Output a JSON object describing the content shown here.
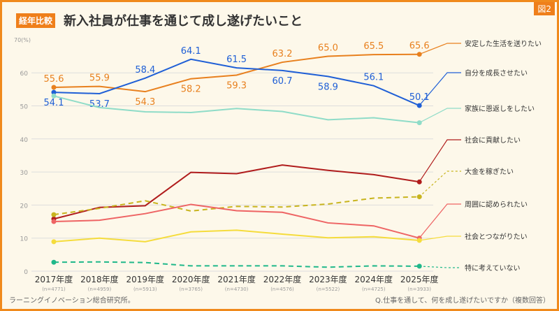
{
  "header": {
    "tag": "経年比較",
    "title": "新入社員が仕事を通じて成し遂げたいこと",
    "figure_label": "図2"
  },
  "footer": {
    "source": "ラーニングイノベーション総合研究所。",
    "question": "Q.仕事を通して、何を成し遂げたいですか（複数回答）"
  },
  "chart_data": {
    "type": "line",
    "ylabel": "70(%)",
    "ylim": [
      0,
      70
    ],
    "yticks": [
      0,
      10,
      20,
      30,
      40,
      50,
      60
    ],
    "categories": [
      "2017年度",
      "2018年度",
      "2019年度",
      "2020年度",
      "2021年度",
      "2022年度",
      "2023年度",
      "2024年度",
      "2025年度"
    ],
    "n": [
      "(n=4771)",
      "(n=4959)",
      "(n=5913)",
      "(n=3765)",
      "(n=4730)",
      "(n=4576)",
      "(n=5522)",
      "(n=4725)",
      "(n=3933)"
    ],
    "series": [
      {
        "name": "安定した生活を送りたい",
        "color": "#e8801e",
        "dash": false,
        "labels": true,
        "values": [
          55.6,
          55.9,
          54.3,
          58.2,
          59.3,
          63.2,
          65.0,
          65.5,
          65.6
        ]
      },
      {
        "name": "自分を成長させたい",
        "color": "#1f5fd6",
        "dash": false,
        "labels": true,
        "values": [
          54.1,
          53.7,
          58.4,
          64.1,
          61.5,
          60.7,
          58.9,
          56.1,
          50.1
        ]
      },
      {
        "name": "家族に恩返しをしたい",
        "color": "#8fdcc8",
        "dash": false,
        "labels": false,
        "values": [
          53.0,
          49.5,
          48.2,
          48.0,
          49.2,
          48.3,
          45.8,
          46.4,
          44.9
        ]
      },
      {
        "name": "社会に貢献したい",
        "color": "#b01c1c",
        "dash": false,
        "labels": false,
        "values": [
          15.8,
          19.3,
          19.8,
          29.9,
          29.5,
          32.1,
          30.5,
          29.2,
          27.0
        ]
      },
      {
        "name": "大金を稼ぎたい",
        "color": "#c8b41e",
        "dash": true,
        "labels": false,
        "values": [
          17.1,
          19.0,
          21.3,
          18.2,
          19.6,
          19.4,
          20.3,
          22.1,
          22.5
        ]
      },
      {
        "name": "周囲に認められたい",
        "color": "#ee6464",
        "dash": false,
        "labels": false,
        "values": [
          15.0,
          15.4,
          17.4,
          20.2,
          18.3,
          17.8,
          14.6,
          13.7,
          10.0
        ]
      },
      {
        "name": "社会とつながりたい",
        "color": "#f5dc3c",
        "dash": false,
        "labels": false,
        "values": [
          8.9,
          10.0,
          8.9,
          11.9,
          12.4,
          11.2,
          10.1,
          10.4,
          9.3
        ]
      },
      {
        "name": "特に考えていない",
        "color": "#20b88a",
        "dash": true,
        "labels": false,
        "values": [
          2.7,
          2.8,
          2.6,
          1.6,
          1.6,
          1.6,
          1.2,
          1.6,
          1.5
        ]
      }
    ]
  }
}
